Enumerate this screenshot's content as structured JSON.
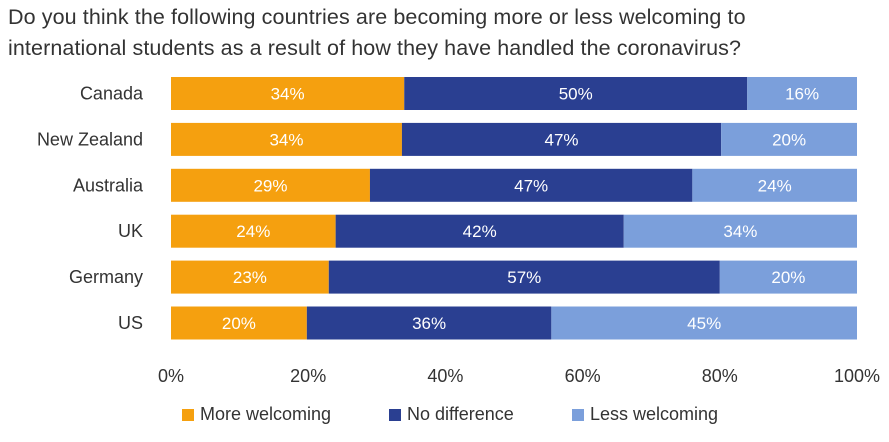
{
  "title_lines": [
    "Do you think the following countries are becoming more or less welcoming to",
    "international students as a result of how they have handled the coronavirus?"
  ],
  "colors": {
    "more_welcoming": "#F5A00F",
    "no_difference": "#2A3F91",
    "less_welcoming": "#7B9FDB"
  },
  "chart_data": {
    "type": "bar",
    "orientation": "horizontal",
    "stacked": true,
    "title": "Do you think the following countries are becoming more or less welcoming to international students as a result of how they have handled the coronavirus?",
    "categories": [
      "Canada",
      "New Zealand",
      "Australia",
      "UK",
      "Germany",
      "US"
    ],
    "series": [
      {
        "name": "More welcoming",
        "values": [
          34,
          34,
          29,
          24,
          23,
          20
        ],
        "labels": [
          "34%",
          "34%",
          "29%",
          "24%",
          "23%",
          "20%"
        ]
      },
      {
        "name": "No difference",
        "values": [
          50,
          47,
          47,
          42,
          57,
          36
        ],
        "labels": [
          "50%",
          "47%",
          "47%",
          "42%",
          "57%",
          "36%"
        ]
      },
      {
        "name": "Less welcoming",
        "values": [
          16,
          20,
          24,
          34,
          20,
          45
        ],
        "labels": [
          "16%",
          "20%",
          "24%",
          "34%",
          "20%",
          "45%"
        ]
      }
    ],
    "xlim": [
      0,
      100
    ],
    "xticks": [
      0,
      20,
      40,
      60,
      80,
      100
    ],
    "xtick_labels": [
      "0%",
      "20%",
      "40%",
      "60%",
      "80%",
      "100%"
    ],
    "grid": false,
    "legend_position": "bottom"
  }
}
